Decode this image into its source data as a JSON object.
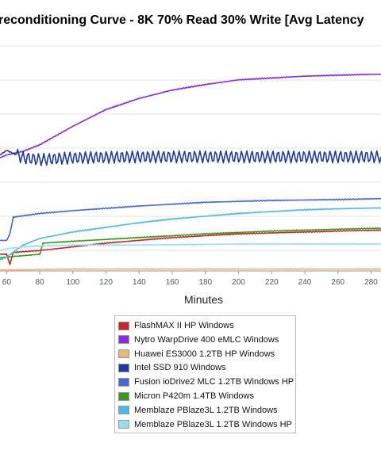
{
  "chart_data": {
    "type": "line",
    "title": "reconditioning Curve - 8K 70% Read 30% Write [Avg Latency",
    "xlabel": "Minutes",
    "ylabel": "",
    "x_ticks": [
      60,
      80,
      100,
      120,
      140,
      160,
      180,
      200,
      220,
      240,
      260,
      280
    ],
    "xlim": [
      56,
      286
    ],
    "ylim_fraction_note": "no y-axis labels visible",
    "grid": true,
    "legend_position": "bottom",
    "series": [
      {
        "name": "FlashMAX II HP Windows",
        "color": "#c62828",
        "x": [
          56,
          60,
          62,
          64,
          80,
          100,
          120,
          140,
          160,
          180,
          200,
          220,
          240,
          260,
          286
        ],
        "y": [
          0.18,
          0.18,
          0.07,
          0.2,
          0.22,
          0.26,
          0.3,
          0.33,
          0.36,
          0.38,
          0.4,
          0.41,
          0.42,
          0.43,
          0.44
        ]
      },
      {
        "name": "Nytro WarpDrive 400 eMLC Windows",
        "color": "#8a2be2",
        "x": [
          56,
          60,
          70,
          80,
          90,
          100,
          120,
          140,
          160,
          180,
          200,
          220,
          240,
          260,
          280,
          286
        ],
        "y": [
          1.22,
          1.25,
          1.29,
          1.36,
          1.46,
          1.56,
          1.74,
          1.86,
          1.95,
          2.01,
          2.06,
          2.08,
          2.1,
          2.11,
          2.12,
          2.12
        ]
      },
      {
        "name": "Huawei ES3000 1.2TB HP Windows",
        "color": "#e8b87a",
        "x": [
          56,
          100,
          150,
          200,
          250,
          286
        ],
        "y": [
          0.01,
          0.02,
          0.02,
          0.02,
          0.02,
          0.02
        ]
      },
      {
        "name": "Intel SSD 910 Windows",
        "color": "#1e3a9e",
        "x": [
          56,
          60,
          70,
          80,
          100,
          140,
          200,
          286
        ],
        "y": [
          1.25,
          1.3,
          1.22,
          1.2,
          1.22,
          1.23,
          1.23,
          1.23
        ]
      },
      {
        "name": "Fusion ioDrive2 MLC 1.2TB Windows HP",
        "color": "#4a67d8",
        "x": [
          56,
          60,
          62,
          64,
          80,
          100,
          140,
          180,
          220,
          260,
          286
        ],
        "y": [
          0.33,
          0.33,
          0.4,
          0.58,
          0.62,
          0.65,
          0.7,
          0.74,
          0.76,
          0.77,
          0.78
        ]
      },
      {
        "name": "Micron P420m 1.4TB Windows",
        "color": "#3a9a1e",
        "x": [
          56,
          60,
          80,
          82,
          100,
          140,
          180,
          220,
          260,
          286
        ],
        "y": [
          0.14,
          0.15,
          0.18,
          0.3,
          0.32,
          0.36,
          0.4,
          0.43,
          0.45,
          0.46
        ]
      },
      {
        "name": "Memblaze PBlaze3L 1.2TB Windows",
        "color": "#4fb8e8",
        "x": [
          56,
          60,
          70,
          80,
          100,
          120,
          140,
          160,
          180,
          200,
          220,
          240,
          260,
          286
        ],
        "y": [
          0.12,
          0.15,
          0.28,
          0.35,
          0.42,
          0.47,
          0.52,
          0.56,
          0.59,
          0.62,
          0.64,
          0.66,
          0.67,
          0.68
        ]
      },
      {
        "name": "Memblaze PBlaze3L 1.2TB Windows HP",
        "color": "#9bdcf5",
        "x": [
          56,
          60,
          70,
          80,
          100,
          140,
          200,
          286
        ],
        "y": [
          0.22,
          0.24,
          0.26,
          0.27,
          0.28,
          0.28,
          0.29,
          0.29
        ]
      }
    ]
  }
}
